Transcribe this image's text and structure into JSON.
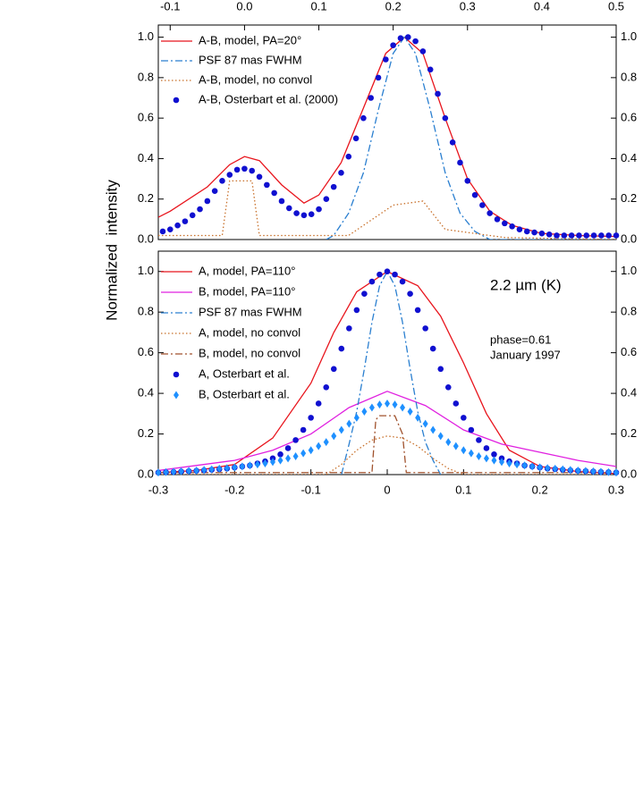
{
  "chart_data": [
    {
      "type": "line",
      "y_label": "Normalized  intensity",
      "xlim": [
        -0.116,
        0.5
      ],
      "ylim": [
        0,
        1.06
      ],
      "xticks": [
        -0.1,
        {
          "value": 0,
          "label": "0.0"
        },
        0.1,
        0.2,
        0.3,
        0.4,
        0.5
      ],
      "yticks": [
        {
          "value": 0,
          "label": "0.0"
        },
        0.2,
        0.4,
        0.6,
        0.8,
        {
          "value": 1,
          "label": "1.0"
        }
      ],
      "x": [
        -0.11,
        -0.1,
        -0.09,
        -0.08,
        -0.07,
        -0.06,
        -0.05,
        -0.04,
        -0.03,
        -0.02,
        -0.01,
        0,
        0.01,
        0.02,
        0.03,
        0.04,
        0.05,
        0.06,
        0.07,
        0.08,
        0.09,
        0.1,
        0.11,
        0.12,
        0.13,
        0.14,
        0.15,
        0.16,
        0.17,
        0.18,
        0.19,
        0.2,
        0.21,
        0.22,
        0.23,
        0.24,
        0.25,
        0.26,
        0.27,
        0.28,
        0.29,
        0.3,
        0.31,
        0.32,
        0.33,
        0.34,
        0.35,
        0.36,
        0.37,
        0.38,
        0.39,
        0.4,
        0.41,
        0.42,
        0.43,
        0.44,
        0.45,
        0.46,
        0.47,
        0.48,
        0.49,
        0.5
      ],
      "series": [
        {
          "name": "A-B, model, PA=20°",
          "color": "#e8141c",
          "style": "solid",
          "x": [
            -0.116,
            -0.1,
            -0.05,
            -0.02,
            0,
            0.02,
            0.05,
            0.08,
            0.1,
            0.13,
            0.16,
            0.19,
            0.215,
            0.24,
            0.27,
            0.3,
            0.33,
            0.36,
            0.4,
            0.45,
            0.5
          ],
          "values": [
            0.11,
            0.14,
            0.26,
            0.37,
            0.41,
            0.39,
            0.27,
            0.18,
            0.22,
            0.38,
            0.65,
            0.92,
            1.0,
            0.92,
            0.6,
            0.3,
            0.14,
            0.07,
            0.03,
            0.02,
            0.015
          ]
        },
        {
          "name": "PSF 87 mas FWHM",
          "color": "#2a7fd0",
          "style": "dashdot",
          "x": [
            0.11,
            0.12,
            0.14,
            0.16,
            0.18,
            0.2,
            0.215,
            0.23,
            0.25,
            0.27,
            0.29,
            0.31,
            0.33,
            0.5
          ],
          "values": [
            0,
            0.02,
            0.13,
            0.33,
            0.64,
            0.92,
            1.0,
            0.92,
            0.64,
            0.33,
            0.13,
            0.04,
            0,
            0
          ]
        },
        {
          "name": "A-B, model, no convol",
          "color": "#c8702a",
          "style": "dotted",
          "x": [
            -0.116,
            -0.03,
            -0.02,
            0.01,
            0.02,
            0.14,
            0.2,
            0.24,
            0.27,
            0.35,
            0.5
          ],
          "values": [
            0.02,
            0.02,
            0.29,
            0.29,
            0.02,
            0.02,
            0.17,
            0.19,
            0.05,
            0.01,
            0
          ]
        },
        {
          "name": "A-B, Osterbart et al. (2000)",
          "color": "#1010d0",
          "marker": "circle",
          "values": [
            0.04,
            0.05,
            0.07,
            0.09,
            0.12,
            0.15,
            0.19,
            0.24,
            0.29,
            0.32,
            0.345,
            0.35,
            0.34,
            0.31,
            0.27,
            0.23,
            0.19,
            0.155,
            0.13,
            0.12,
            0.125,
            0.15,
            0.2,
            0.26,
            0.33,
            0.41,
            0.5,
            0.6,
            0.7,
            0.8,
            0.89,
            0.96,
            0.995,
            1.0,
            0.98,
            0.93,
            0.84,
            0.72,
            0.6,
            0.48,
            0.38,
            0.29,
            0.22,
            0.17,
            0.13,
            0.1,
            0.08,
            0.065,
            0.05,
            0.04,
            0.035,
            0.03,
            0.025,
            0.02,
            0.02,
            0.02,
            0.02,
            0.02,
            0.02,
            0.02,
            0.02,
            0.02
          ]
        }
      ]
    },
    {
      "type": "line",
      "xlim": [
        -0.3,
        0.3
      ],
      "ylim": [
        0,
        1.1
      ],
      "xticks": [
        -0.3,
        -0.2,
        -0.1,
        0,
        0.1,
        0.2,
        0.3
      ],
      "yticks": [
        {
          "value": 0,
          "label": "0.0"
        },
        0.2,
        0.4,
        0.6,
        0.8,
        {
          "value": 1,
          "label": "1.0"
        }
      ],
      "annotations": [
        "2.2 µm (K)",
        "phase=0.61",
        "January 1997"
      ],
      "x": [
        -0.3,
        -0.29,
        -0.28,
        -0.27,
        -0.26,
        -0.25,
        -0.24,
        -0.23,
        -0.22,
        -0.21,
        -0.2,
        -0.19,
        -0.18,
        -0.17,
        -0.16,
        -0.15,
        -0.14,
        -0.13,
        -0.12,
        -0.11,
        -0.1,
        -0.09,
        -0.08,
        -0.07,
        -0.06,
        -0.05,
        -0.04,
        -0.03,
        -0.02,
        -0.01,
        0,
        0.01,
        0.02,
        0.03,
        0.04,
        0.05,
        0.06,
        0.07,
        0.08,
        0.09,
        0.1,
        0.11,
        0.12,
        0.13,
        0.14,
        0.15,
        0.16,
        0.17,
        0.18,
        0.19,
        0.2,
        0.21,
        0.22,
        0.23,
        0.24,
        0.25,
        0.26,
        0.27,
        0.28,
        0.29,
        0.3
      ],
      "series": [
        {
          "name": "A, model, PA=110°",
          "color": "#e8141c",
          "style": "solid",
          "x": [
            -0.3,
            -0.25,
            -0.2,
            -0.15,
            -0.1,
            -0.07,
            -0.04,
            0,
            0.04,
            0.07,
            0.1,
            0.13,
            0.16,
            0.2,
            0.25,
            0.3
          ],
          "values": [
            0.01,
            0.02,
            0.05,
            0.18,
            0.45,
            0.7,
            0.9,
            1.0,
            0.93,
            0.78,
            0.55,
            0.3,
            0.12,
            0.04,
            0.015,
            0.005
          ]
        },
        {
          "name": "B, model, PA=110°",
          "color": "#e020e0",
          "style": "solid",
          "x": [
            -0.3,
            -0.2,
            -0.15,
            -0.1,
            -0.05,
            0,
            0.05,
            0.1,
            0.15,
            0.2,
            0.25,
            0.3
          ],
          "values": [
            0.02,
            0.07,
            0.12,
            0.2,
            0.33,
            0.41,
            0.34,
            0.22,
            0.15,
            0.11,
            0.07,
            0.04
          ]
        },
        {
          "name": "PSF 87 mas FWHM",
          "color": "#2a7fd0",
          "style": "dashdot",
          "x": [
            -0.06,
            -0.05,
            -0.04,
            -0.03,
            -0.02,
            -0.01,
            0,
            0.01,
            0.02,
            0.03,
            0.04,
            0.05,
            0.06,
            0.07
          ],
          "values": [
            0,
            0.15,
            0.31,
            0.52,
            0.75,
            0.93,
            1.0,
            0.93,
            0.75,
            0.52,
            0.31,
            0.16,
            0.07,
            0
          ]
        },
        {
          "name": "A, model, no convol",
          "color": "#c8702a",
          "style": "dotted",
          "x": [
            -0.3,
            -0.08,
            -0.06,
            -0.04,
            -0.02,
            0,
            0.02,
            0.04,
            0.06,
            0.08,
            0.1,
            0.3
          ],
          "values": [
            0,
            0,
            0.05,
            0.12,
            0.17,
            0.19,
            0.18,
            0.14,
            0.08,
            0.03,
            0,
            0
          ]
        },
        {
          "name": "B, model, no convol",
          "color": "#a0522d",
          "style": "dashdot",
          "x": [
            -0.3,
            -0.02,
            -0.015,
            -0.01,
            0.01,
            0.02,
            0.025,
            0.3
          ],
          "values": [
            0.01,
            0.01,
            0.27,
            0.29,
            0.29,
            0.2,
            0.01,
            0.01
          ]
        },
        {
          "name": "A, Osterbart et al.",
          "color": "#1010d0",
          "marker": "circle",
          "values": [
            0.01,
            0.012,
            0.013,
            0.015,
            0.017,
            0.019,
            0.021,
            0.024,
            0.027,
            0.03,
            0.035,
            0.04,
            0.045,
            0.055,
            0.065,
            0.08,
            0.1,
            0.13,
            0.17,
            0.22,
            0.28,
            0.35,
            0.43,
            0.52,
            0.62,
            0.72,
            0.81,
            0.89,
            0.95,
            0.985,
            1.0,
            0.985,
            0.95,
            0.89,
            0.81,
            0.72,
            0.62,
            0.52,
            0.43,
            0.35,
            0.28,
            0.22,
            0.17,
            0.13,
            0.1,
            0.08,
            0.065,
            0.055,
            0.045,
            0.04,
            0.035,
            0.03,
            0.027,
            0.024,
            0.021,
            0.019,
            0.017,
            0.015,
            0.013,
            0.012,
            0.01
          ]
        },
        {
          "name": "B, Osterbart et al.",
          "color": "#1e90ff",
          "marker": "diamond",
          "values": [
            0.01,
            0.012,
            0.014,
            0.016,
            0.018,
            0.02,
            0.023,
            0.026,
            0.029,
            0.032,
            0.036,
            0.04,
            0.045,
            0.05,
            0.055,
            0.062,
            0.07,
            0.08,
            0.09,
            0.105,
            0.12,
            0.14,
            0.16,
            0.19,
            0.22,
            0.25,
            0.28,
            0.31,
            0.33,
            0.345,
            0.35,
            0.345,
            0.33,
            0.31,
            0.28,
            0.25,
            0.22,
            0.19,
            0.16,
            0.14,
            0.12,
            0.105,
            0.09,
            0.08,
            0.07,
            0.062,
            0.055,
            0.05,
            0.045,
            0.04,
            0.036,
            0.032,
            0.029,
            0.026,
            0.023,
            0.02,
            0.018,
            0.016,
            0.014,
            0.012,
            0.01
          ]
        }
      ]
    }
  ]
}
